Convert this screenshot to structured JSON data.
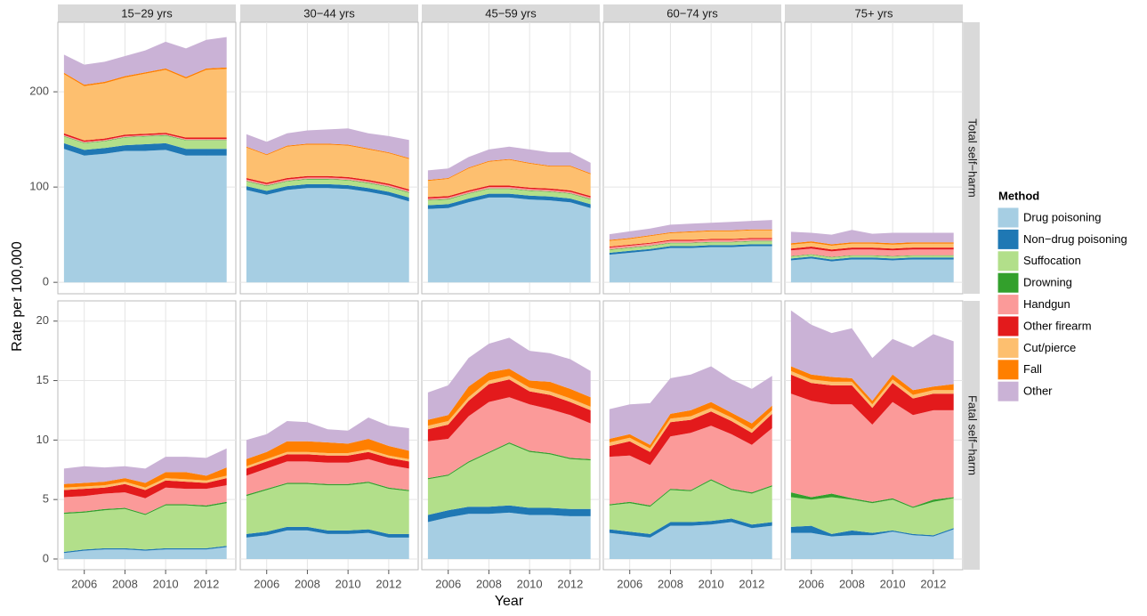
{
  "chart_data": {
    "type": "area",
    "xlabel": "Year",
    "ylabel": "Rate per 100,000",
    "legend_title": "Method",
    "x": [
      2005,
      2006,
      2007,
      2008,
      2009,
      2010,
      2011,
      2012,
      2013
    ],
    "xlim": [
      2004.7,
      2013.45
    ],
    "xticks": [
      2006,
      2008,
      2010,
      2012
    ],
    "columns": [
      "15−29 yrs",
      "30−44 yrs",
      "45−59 yrs",
      "60−74 yrs",
      "75+ yrs"
    ],
    "rows": [
      {
        "label": "Total self−harm",
        "ylim": [
          -12,
          273
        ],
        "yticks": [
          0,
          100,
          200
        ]
      },
      {
        "label": "Fatal self−harm",
        "ylim": [
          -0.9,
          21.7
        ],
        "yticks": [
          0,
          5,
          10,
          15,
          20
        ]
      }
    ],
    "grid": true,
    "series": [
      {
        "name": "Drug poisoning",
        "color": "#a6cee3",
        "values": [
          [
            [
              140,
              133,
              135,
              138,
              138,
              139,
              133,
              133,
              133
            ],
            [
              97,
              92,
              97,
              99,
              99,
              98,
              95,
              91,
              85
            ],
            [
              77,
              78,
              84,
              89,
              89,
              87,
              86,
              84,
              78
            ],
            [
              29,
              31,
              33,
              36,
              36,
              37,
              37,
              38,
              38
            ],
            [
              23,
              25,
              22,
              24,
              24,
              23,
              24,
              24,
              24
            ]
          ],
          [
            [
              0.5,
              0.7,
              0.8,
              0.8,
              0.7,
              0.8,
              0.8,
              0.8,
              1.0
            ],
            [
              1.8,
              2.0,
              2.4,
              2.4,
              2.1,
              2.1,
              2.2,
              1.8,
              1.8
            ],
            [
              3.1,
              3.5,
              3.8,
              3.8,
              3.9,
              3.7,
              3.7,
              3.6,
              3.6
            ],
            [
              2.2,
              2.0,
              1.8,
              2.8,
              2.8,
              2.9,
              3.1,
              2.6,
              2.8
            ],
            [
              2.2,
              2.2,
              1.9,
              2.0,
              2.0,
              2.3,
              2.0,
              1.9,
              2.5
            ]
          ]
        ]
      },
      {
        "name": "Non−drug poisoning",
        "color": "#1f78b4",
        "values": [
          [
            [
              6,
              6,
              6,
              6,
              7,
              7,
              7,
              7,
              7
            ],
            [
              4,
              4,
              4,
              4,
              4,
              4,
              4,
              4,
              4
            ],
            [
              4,
              4,
              4,
              4,
              4,
              4,
              4,
              4,
              4
            ],
            [
              2,
              2,
              2,
              2,
              2,
              2,
              2,
              2,
              2
            ],
            [
              2,
              2,
              2,
              2,
              2,
              2,
              2,
              2,
              2
            ]
          ],
          [
            [
              0.1,
              0.1,
              0.1,
              0.1,
              0.1,
              0.1,
              0.1,
              0.1,
              0.1
            ],
            [
              0.3,
              0.3,
              0.3,
              0.3,
              0.3,
              0.3,
              0.3,
              0.3,
              0.3
            ],
            [
              0.6,
              0.6,
              0.6,
              0.6,
              0.6,
              0.6,
              0.6,
              0.6,
              0.6
            ],
            [
              0.3,
              0.3,
              0.3,
              0.3,
              0.3,
              0.3,
              0.3,
              0.3,
              0.3
            ],
            [
              0.5,
              0.6,
              0.2,
              0.4,
              0.2,
              0.1,
              0.1,
              0.1,
              0.1
            ]
          ]
        ]
      },
      {
        "name": "Suffocation",
        "color": "#b2df8a",
        "values": [
          [
            [
              7,
              7,
              7,
              8,
              8,
              8,
              9,
              9,
              9
            ],
            [
              5,
              5,
              5,
              5,
              5,
              5,
              5,
              5,
              5
            ],
            [
              5,
              5,
              5,
              5,
              5,
              5,
              5,
              5,
              5
            ],
            [
              3,
              3,
              3,
              3,
              3,
              3,
              3,
              3,
              3
            ],
            [
              2,
              2,
              2,
              2,
              2,
              2,
              2,
              2,
              2
            ]
          ],
          [
            [
              3.2,
              3.1,
              3.2,
              3.3,
              2.9,
              3.6,
              3.6,
              3.5,
              3.6
            ],
            [
              3.2,
              3.5,
              3.6,
              3.6,
              3.8,
              3.8,
              3.9,
              3.8,
              3.6
            ],
            [
              3.0,
              2.9,
              3.7,
              4.5,
              5.2,
              4.7,
              4.5,
              4.2,
              4.1
            ],
            [
              2.0,
              2.4,
              2.3,
              2.7,
              2.6,
              3.4,
              2.4,
              2.6,
              3.0
            ],
            [
              2.5,
              2.2,
              3.1,
              2.6,
              2.5,
              2.6,
              2.2,
              2.8,
              2.5
            ]
          ]
        ]
      },
      {
        "name": "Drowning",
        "color": "#33a02c",
        "values": [
          [
            [
              0.5,
              0.5,
              0.5,
              0.5,
              0.5,
              0.5,
              0.5,
              0.5,
              0.5
            ],
            [
              0.5,
              0.5,
              0.5,
              0.5,
              0.5,
              0.5,
              0.5,
              0.5,
              0.5
            ],
            [
              0.5,
              0.5,
              0.5,
              0.5,
              0.5,
              0.5,
              0.5,
              0.5,
              0.5
            ],
            [
              0.5,
              0.5,
              0.5,
              0.5,
              0.5,
              0.5,
              0.5,
              0.5,
              0.5
            ],
            [
              0.5,
              0.5,
              0.5,
              0.5,
              0.5,
              0.5,
              0.5,
              0.5,
              0.5
            ]
          ],
          [
            [
              0.1,
              0.1,
              0.1,
              0.1,
              0.1,
              0.1,
              0.1,
              0.1,
              0.1
            ],
            [
              0.1,
              0.1,
              0.1,
              0.1,
              0.1,
              0.1,
              0.1,
              0.1,
              0.1
            ],
            [
              0.1,
              0.1,
              0.1,
              0.1,
              0.1,
              0.1,
              0.1,
              0.1,
              0.1
            ],
            [
              0.1,
              0.1,
              0.1,
              0.1,
              0.1,
              0.1,
              0.1,
              0.1,
              0.1
            ],
            [
              0.4,
              0.2,
              0.3,
              0.1,
              0.1,
              0.1,
              0.1,
              0.2,
              0.1
            ]
          ]
        ]
      },
      {
        "name": "Handgun",
        "color": "#fb9a99",
        "values": [
          [
            [
              1,
              1,
              1,
              1,
              1,
              1,
              1,
              1,
              1
            ],
            [
              1.5,
              1.5,
              1.5,
              1.5,
              1.5,
              1.5,
              1.5,
              1.5,
              1.5
            ],
            [
              1.5,
              1.5,
              1.5,
              1.5,
              1.5,
              1.5,
              1.5,
              1.5,
              1.5
            ],
            [
              2,
              2,
              2,
              2,
              2,
              2,
              2,
              2,
              2
            ],
            [
              6,
              6,
              6,
              6,
              6,
              6,
              6,
              6,
              6
            ]
          ],
          [
            [
              1.3,
              1.3,
              1.3,
              1.3,
              1.3,
              1.4,
              1.3,
              1.4,
              1.4
            ],
            [
              1.6,
              1.7,
              1.8,
              1.8,
              1.8,
              1.8,
              1.9,
              1.9,
              1.8
            ],
            [
              3.1,
              3.0,
              3.8,
              4.2,
              3.8,
              3.9,
              3.7,
              3.6,
              3.0
            ],
            [
              4.0,
              3.9,
              3.4,
              4.4,
              4.8,
              4.5,
              4.6,
              4.0,
              4.8
            ],
            [
              8.3,
              8.1,
              7.5,
              7.9,
              6.5,
              8.1,
              7.7,
              7.5,
              7.3
            ]
          ]
        ]
      },
      {
        "name": "Other firearm",
        "color": "#e31a1c",
        "values": [
          [
            [
              2,
              1.5,
              1.5,
              1.5,
              1.5,
              1.5,
              1.5,
              1.5,
              1.5
            ],
            [
              1.5,
              1.5,
              1.5,
              1.5,
              1.5,
              1.5,
              1.5,
              1.5,
              1.5
            ],
            [
              1.5,
              1.5,
              1.5,
              1.5,
              1.5,
              1.5,
              1.5,
              1.5,
              1.5
            ],
            [
              1,
              1,
              1,
              1,
              1,
              1,
              1,
              1,
              1
            ],
            [
              2,
              2,
              2,
              2,
              2,
              2,
              2,
              2,
              2
            ]
          ],
          [
            [
              0.6,
              0.6,
              0.5,
              0.7,
              0.7,
              0.6,
              0.6,
              0.5,
              0.6
            ],
            [
              0.6,
              0.6,
              0.6,
              0.6,
              0.6,
              0.6,
              0.6,
              0.6,
              0.6
            ],
            [
              1.0,
              1.2,
              1.3,
              1.5,
              1.5,
              1.1,
              1.2,
              1.1,
              1.1
            ],
            [
              0.9,
              1.2,
              1.1,
              1.2,
              1.1,
              1.2,
              1.1,
              1.0,
              1.2
            ],
            [
              1.6,
              1.5,
              1.6,
              1.6,
              1.4,
              1.6,
              1.4,
              1.4,
              1.4
            ]
          ]
        ]
      },
      {
        "name": "Cut/pierce",
        "color": "#fdbf6f",
        "values": [
          [
            [
              62,
              57,
              58,
              60,
              63,
              66,
              62,
              71,
              72
            ],
            [
              32,
              29,
              33,
              33,
              33,
              33,
              32,
              32,
              32
            ],
            [
              17,
              18,
              23,
              25,
              27,
              25,
              23,
              25,
              23
            ],
            [
              6,
              6,
              7,
              7,
              8,
              8,
              8,
              8,
              8
            ],
            [
              4,
              4,
              4,
              4,
              4,
              4,
              4,
              4,
              4
            ]
          ],
          [
            [
              0.2,
              0.2,
              0.2,
              0.2,
              0.2,
              0.2,
              0.2,
              0.2,
              0.2
            ],
            [
              0.2,
              0.2,
              0.2,
              0.2,
              0.2,
              0.2,
              0.2,
              0.2,
              0.2
            ],
            [
              0.3,
              0.3,
              0.3,
              0.3,
              0.3,
              0.3,
              0.3,
              0.3,
              0.3
            ],
            [
              0.3,
              0.3,
              0.3,
              0.3,
              0.3,
              0.3,
              0.3,
              0.3,
              0.3
            ],
            [
              0.3,
              0.3,
              0.3,
              0.3,
              0.3,
              0.3,
              0.3,
              0.3,
              0.3
            ]
          ]
        ]
      },
      {
        "name": "Fall",
        "color": "#ff7f00",
        "values": [
          [
            [
              1.5,
              1.5,
              1.5,
              1.5,
              1.5,
              1.5,
              1.5,
              1.5,
              1.5
            ],
            [
              1,
              1,
              1,
              1,
              1,
              1,
              1,
              1,
              1
            ],
            [
              1,
              1,
              1,
              1,
              1,
              1,
              1,
              1,
              1
            ],
            [
              1,
              1,
              1,
              1,
              1,
              1,
              1,
              1,
              1
            ],
            [
              1.5,
              1.5,
              1.5,
              1.5,
              1.5,
              1.5,
              1.5,
              1.5,
              1.5
            ]
          ],
          [
            [
              0.3,
              0.3,
              0.3,
              0.3,
              0.4,
              0.5,
              0.6,
              0.4,
              0.7
            ],
            [
              0.6,
              0.6,
              0.9,
              0.9,
              0.9,
              0.8,
              0.9,
              0.8,
              0.7
            ],
            [
              0.5,
              0.5,
              0.9,
              0.7,
              0.6,
              0.6,
              0.8,
              0.8,
              0.8
            ],
            [
              0.3,
              0.3,
              0.3,
              0.4,
              0.5,
              0.5,
              0.4,
              0.5,
              0.4
            ],
            [
              0.4,
              0.4,
              0.4,
              0.3,
              0.3,
              0.4,
              0.4,
              0.3,
              0.5
            ]
          ]
        ]
      },
      {
        "name": "Other",
        "color": "#cab2d6",
        "values": [
          [
            [
              19,
              21,
              21,
              21,
              23,
              28,
              30,
              30,
              32
            ],
            [
              13,
              13,
              13,
              14,
              15,
              17,
              16,
              17,
              19
            ],
            [
              10,
              10,
              11,
              12,
              13,
              14,
              14,
              14,
              11
            ],
            [
              6,
              7,
              7,
              8,
              8,
              8,
              9,
              9,
              10
            ],
            [
              12,
              9,
              10,
              13,
              9,
              11,
              10,
              10,
              10
            ]
          ],
          [
            [
              1.3,
              1.4,
              1.2,
              1.0,
              1.2,
              1.3,
              1.3,
              1.5,
              1.6
            ],
            [
              1.6,
              1.5,
              1.7,
              1.6,
              1.1,
              1.1,
              1.8,
              1.7,
              1.9
            ],
            [
              2.3,
              2.5,
              2.4,
              2.4,
              2.6,
              2.5,
              2.4,
              2.5,
              2.2
            ],
            [
              2.5,
              2.5,
              3.5,
              3.0,
              3.0,
              3.0,
              2.8,
              2.9,
              2.5
            ],
            [
              4.7,
              4.2,
              3.7,
              4.2,
              3.6,
              3.0,
              3.6,
              4.4,
              3.6
            ]
          ]
        ]
      }
    ]
  }
}
